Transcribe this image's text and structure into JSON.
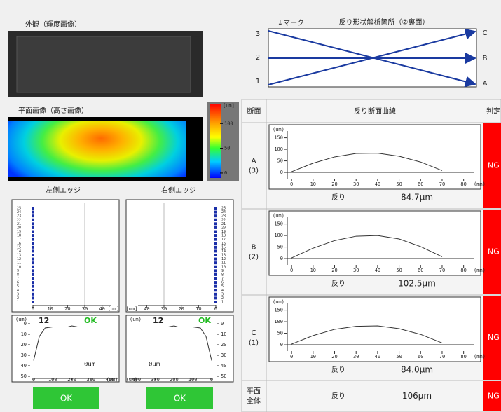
{
  "appearance": {
    "title": "外観（輝度画像）"
  },
  "plane": {
    "title": "平面画像（高さ画像）",
    "colorbar": {
      "unit": "[um]",
      "ticks": [
        100,
        50,
        0
      ],
      "lim": [
        -10,
        140
      ]
    }
  },
  "left_edge": {
    "title": "左側エッジ",
    "positions": [
      1,
      2,
      3,
      4,
      5,
      6,
      7,
      8,
      9,
      10,
      11,
      12,
      13,
      14,
      15,
      16,
      17,
      18,
      19,
      20,
      21,
      22,
      23,
      24,
      25
    ],
    "values": [
      0,
      0,
      0,
      0,
      0,
      0,
      0,
      0,
      0,
      0,
      0,
      0,
      0,
      0,
      0,
      0,
      0,
      0,
      0,
      0,
      0,
      0,
      0,
      0,
      0
    ],
    "limit": 30,
    "xlim": [
      0,
      45
    ],
    "xticks": [
      0,
      10,
      20,
      30,
      40
    ],
    "x_unit": "[um]"
  },
  "right_edge": {
    "title": "右側エッジ",
    "positions": [
      1,
      2,
      3,
      4,
      5,
      6,
      7,
      8,
      9,
      10,
      11,
      12,
      13,
      14,
      15,
      16,
      17,
      18,
      19,
      20,
      21,
      22,
      23,
      24,
      25
    ],
    "values": [
      0,
      0,
      0,
      0,
      0,
      0,
      0,
      0,
      0,
      0,
      0,
      0,
      0,
      0,
      0,
      0,
      0,
      0,
      0,
      0,
      0,
      0,
      0,
      0,
      0
    ],
    "limit": 30,
    "xlim": [
      0,
      45
    ],
    "xticks": [
      0,
      10,
      20,
      30,
      40
    ],
    "x_unit": "[um]"
  },
  "left_profile": {
    "count": "12",
    "status": "OK",
    "note": "0um",
    "y_unit": "(um)",
    "x_unit": "(um)",
    "x": [
      0,
      30,
      60,
      100,
      150,
      180,
      200,
      230,
      260,
      300,
      340,
      370,
      400
    ],
    "values": [
      35,
      12,
      4,
      3,
      3,
      3,
      2,
      3,
      3,
      3,
      3,
      3,
      3
    ],
    "xlim": [
      0,
      440
    ],
    "ylim": [
      0,
      52
    ],
    "xticks": [
      0,
      100,
      200,
      300,
      400
    ],
    "yticks": [
      0,
      10,
      20,
      30,
      40,
      50
    ]
  },
  "right_profile": {
    "count": "12",
    "status": "OK",
    "note": "0um",
    "y_unit": "(um)",
    "x_unit": "(um)",
    "x": [
      0,
      30,
      60,
      100,
      150,
      180,
      200,
      230,
      260,
      300,
      340,
      370,
      400
    ],
    "values": [
      35,
      12,
      4,
      3,
      3,
      3,
      2,
      3,
      3,
      3,
      3,
      3,
      3
    ],
    "xlim": [
      440,
      0
    ],
    "ylim": [
      0,
      52
    ],
    "xticks": [
      400,
      300,
      200,
      100,
      0
    ],
    "yticks": [
      0,
      10,
      20,
      30,
      40,
      50
    ]
  },
  "buttons": [
    "OK",
    "OK"
  ],
  "diagram": {
    "mark": "↓マーク",
    "title": "反り形状解析箇所（②裏面）",
    "left_labels": [
      "3",
      "2",
      "1"
    ],
    "right_labels": [
      "C",
      "B",
      "A"
    ]
  },
  "table": {
    "headers": [
      "断面",
      "反り断面曲線",
      "判定"
    ],
    "rows": [
      {
        "section": [
          "A",
          "(3)"
        ],
        "label": "反り",
        "value": "84.7μm",
        "judgement": "NG",
        "chart": {
          "type": "line",
          "y_unit": "(um)",
          "x_unit": "(mm)",
          "x": [
            0,
            10,
            20,
            30,
            40,
            50,
            60,
            70
          ],
          "values": [
            3,
            40,
            67,
            82,
            83,
            70,
            45,
            8
          ],
          "xlim": [
            -2,
            85
          ],
          "ylim": [
            -12,
            170
          ],
          "xticks": [
            0,
            10,
            20,
            30,
            40,
            50,
            60,
            70,
            80
          ],
          "yticks": [
            0,
            50,
            100,
            150
          ]
        }
      },
      {
        "section": [
          "B",
          "(2)"
        ],
        "label": "反り",
        "value": "102.5μm",
        "judgement": "NG",
        "chart": {
          "type": "line",
          "y_unit": "(um)",
          "x_unit": "(mm)",
          "x": [
            0,
            10,
            20,
            30,
            40,
            50,
            60,
            70
          ],
          "values": [
            3,
            45,
            78,
            97,
            100,
            85,
            52,
            8
          ],
          "xlim": [
            -2,
            85
          ],
          "ylim": [
            -12,
            170
          ],
          "xticks": [
            0,
            10,
            20,
            30,
            40,
            50,
            60,
            70,
            80
          ],
          "yticks": [
            0,
            50,
            100,
            150
          ]
        }
      },
      {
        "section": [
          "C",
          "(1)"
        ],
        "label": "反り",
        "value": "84.0μm",
        "judgement": "NG",
        "chart": {
          "type": "line",
          "y_unit": "(um)",
          "x_unit": "(mm)",
          "x": [
            0,
            10,
            20,
            30,
            40,
            50,
            60,
            70
          ],
          "values": [
            3,
            40,
            67,
            80,
            82,
            70,
            45,
            8
          ],
          "xlim": [
            -2,
            85
          ],
          "ylim": [
            -12,
            170
          ],
          "xticks": [
            0,
            10,
            20,
            30,
            40,
            50,
            60,
            70,
            80
          ],
          "yticks": [
            0,
            50,
            100,
            150
          ]
        }
      },
      {
        "section": [
          "平面",
          "全体"
        ],
        "label": "反り",
        "value": "106μm",
        "judgement": "NG"
      }
    ]
  }
}
